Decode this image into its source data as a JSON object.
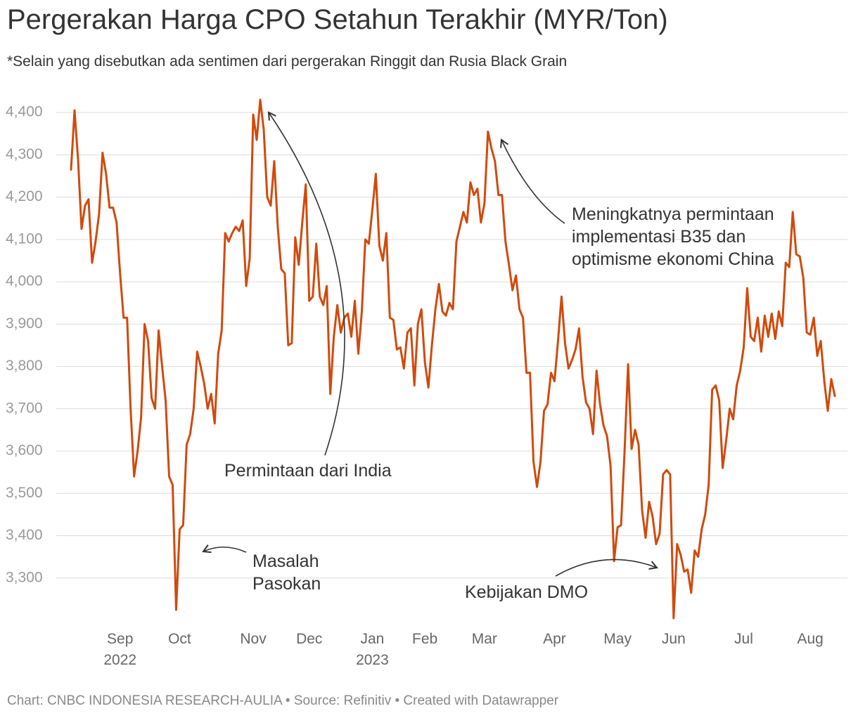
{
  "chart_data": {
    "type": "line",
    "title": "Pergerakan Harga CPO Setahun Terakhir (MYR/Ton)",
    "subtitle": "*Selain yang disebutkan ada sentimen dari pergerakan Ringgit dan Rusia Black Grain",
    "footer": "Chart: CNBC INDONESIA RESEARCH-AULIA • Source: Refinitiv • Created with Datawrapper",
    "annotations": [
      "Permintaan dari India",
      "Masalah Pasokan",
      "Meningkatnya permintaan implementasi B35 dan optimisme ekonomi China",
      "Kebijakan DMO"
    ],
    "color": "#d04a0c",
    "grid": true,
    "ylim": [
      3190,
      4450
    ],
    "yticks": [
      {
        "value": 3300,
        "label": "3,300"
      },
      {
        "value": 3400,
        "label": "3,400"
      },
      {
        "value": 3500,
        "label": "3,500"
      },
      {
        "value": 3600,
        "label": "3,600"
      },
      {
        "value": 3700,
        "label": "3,700"
      },
      {
        "value": 3800,
        "label": "3,800"
      },
      {
        "value": 3900,
        "label": "3,900"
      },
      {
        "value": 4000,
        "label": "4,000"
      },
      {
        "value": 4100,
        "label": "4,100"
      },
      {
        "value": 4200,
        "label": "4,200"
      },
      {
        "value": 4300,
        "label": "4,300"
      },
      {
        "value": 4400,
        "label": "4,400"
      }
    ],
    "categories": [
      null,
      null,
      null,
      null,
      null,
      null,
      null,
      null,
      null,
      null,
      null,
      null,
      null,
      null,
      "Sep 2022",
      null,
      null,
      null,
      null,
      null,
      null,
      null,
      null,
      null,
      null,
      null,
      null,
      null,
      null,
      null,
      null,
      "Oct",
      null,
      null,
      null,
      null,
      null,
      null,
      null,
      null,
      null,
      null,
      null,
      null,
      null,
      null,
      null,
      null,
      null,
      null,
      null,
      null,
      "Nov",
      null,
      null,
      null,
      null,
      null,
      null,
      null,
      null,
      null,
      null,
      null,
      null,
      null,
      null,
      null,
      "Dec",
      null,
      null,
      null,
      null,
      null,
      null,
      null,
      null,
      null,
      null,
      null,
      null,
      null,
      null,
      null,
      null,
      null,
      "Jan 2023",
      null,
      null,
      null,
      null,
      null,
      null,
      null,
      null,
      null,
      null,
      null,
      null,
      null,
      null,
      "Feb",
      null,
      null,
      null,
      null,
      null,
      null,
      null,
      null,
      null,
      null,
      null,
      null,
      null,
      null,
      null,
      null,
      "Mar",
      null,
      null,
      null,
      null,
      null,
      null,
      null,
      null,
      null,
      null,
      null,
      null,
      null,
      null,
      null,
      null,
      null,
      null,
      null,
      "Apr",
      null,
      null,
      null,
      null,
      null,
      null,
      null,
      null,
      null,
      null,
      null,
      null,
      null,
      null,
      null,
      null,
      null,
      "May",
      null,
      null,
      null,
      null,
      null,
      null,
      null,
      null,
      null,
      null,
      null,
      null,
      null,
      null,
      null,
      "Jun",
      null,
      null,
      null,
      null,
      null,
      null,
      null,
      null,
      null,
      null,
      null,
      null,
      null,
      null,
      null,
      null,
      null,
      null,
      null,
      "Jul",
      null,
      null,
      null,
      null,
      null,
      null,
      null,
      null,
      null,
      null,
      null,
      null,
      null,
      null,
      null,
      null,
      null,
      null,
      "Aug",
      null,
      null,
      null,
      null,
      null,
      null,
      null
    ],
    "values": [
      4265,
      4405,
      4290,
      4125,
      4180,
      4195,
      4045,
      4095,
      4160,
      4305,
      4255,
      4175,
      4175,
      4140,
      4020,
      3915,
      3915,
      3700,
      3540,
      3600,
      3680,
      3900,
      3860,
      3725,
      3700,
      3885,
      3800,
      3720,
      3540,
      3520,
      3225,
      3415,
      3425,
      3615,
      3640,
      3700,
      3835,
      3800,
      3760,
      3700,
      3735,
      3665,
      3830,
      3885,
      4115,
      4095,
      4115,
      4130,
      4120,
      4145,
      3990,
      4055,
      4395,
      4335,
      4430,
      4360,
      4200,
      4180,
      4285,
      4130,
      4030,
      4020,
      3850,
      3855,
      4105,
      4040,
      4140,
      4230,
      3955,
      3965,
      4090,
      3965,
      3945,
      3990,
      3735,
      3870,
      3945,
      3880,
      3915,
      3925,
      3870,
      3955,
      3830,
      3930,
      4100,
      4090,
      4170,
      4255,
      4085,
      4050,
      4115,
      3915,
      3910,
      3840,
      3845,
      3795,
      3880,
      3890,
      3755,
      3900,
      3935,
      3810,
      3750,
      3850,
      3935,
      3995,
      3930,
      3920,
      3950,
      3935,
      4095,
      4130,
      4165,
      4140,
      4235,
      4205,
      4220,
      4140,
      4185,
      4355,
      4315,
      4285,
      4205,
      4205,
      4095,
      4040,
      3980,
      4015,
      3935,
      3915,
      3785,
      3785,
      3575,
      3515,
      3575,
      3695,
      3710,
      3785,
      3765,
      3860,
      3965,
      3855,
      3795,
      3815,
      3840,
      3890,
      3775,
      3715,
      3700,
      3640,
      3790,
      3710,
      3660,
      3635,
      3565,
      3340,
      3420,
      3425,
      3600,
      3805,
      3605,
      3650,
      3615,
      3460,
      3395,
      3480,
      3445,
      3380,
      3405,
      3545,
      3555,
      3545,
      3205,
      3380,
      3355,
      3315,
      3320,
      3265,
      3365,
      3350,
      3415,
      3450,
      3520,
      3745,
      3755,
      3720,
      3560,
      3625,
      3700,
      3675,
      3755,
      3790,
      3845,
      3985,
      3870,
      3860,
      3915,
      3835,
      3920,
      3870,
      3925,
      3865,
      3930,
      3895,
      4045,
      4035,
      4165,
      4065,
      4060,
      4010,
      3880,
      3875,
      3915,
      3825,
      3860,
      3765,
      3695,
      3770,
      3730
    ]
  }
}
